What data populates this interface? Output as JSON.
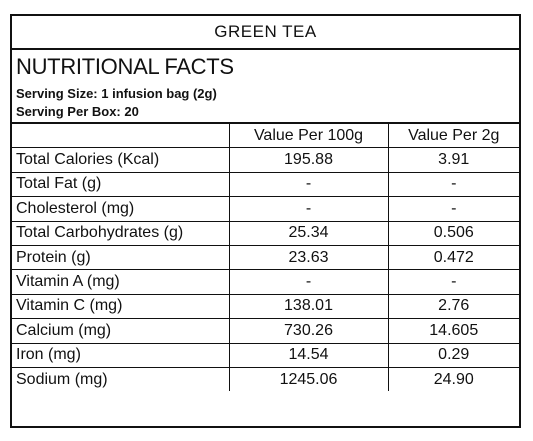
{
  "product_title": "GREEN TEA",
  "heading": "NUTRITIONAL FACTS",
  "serving_size": "Serving Size: 1 infusion bag (2g)",
  "serving_per_box": "Serving Per Box: 20",
  "columns": [
    "",
    "Value Per 100g",
    "Value Per 2g"
  ],
  "rows": [
    {
      "name": "Total Calories (Kcal)",
      "per100": "195.88",
      "per2": "3.91"
    },
    {
      "name": "Total Fat (g)",
      "per100": "-",
      "per2": "-"
    },
    {
      "name": "Cholesterol (mg)",
      "per100": "-",
      "per2": "-"
    },
    {
      "name": "Total Carbohydrates (g)",
      "per100": "25.34",
      "per2": "0.506"
    },
    {
      "name": "Protein (g)",
      "per100": "23.63",
      "per2": "0.472"
    },
    {
      "name": "Vitamin A (mg)",
      "per100": "-",
      "per2": "-"
    },
    {
      "name": "Vitamin C (mg)",
      "per100": "138.01",
      "per2": "2.76"
    },
    {
      "name": "Calcium (mg)",
      "per100": "730.26",
      "per2": "14.605"
    },
    {
      "name": "Iron (mg)",
      "per100": "14.54",
      "per2": "0.29"
    },
    {
      "name": "Sodium (mg)",
      "per100": "1245.06",
      "per2": "24.90"
    }
  ]
}
